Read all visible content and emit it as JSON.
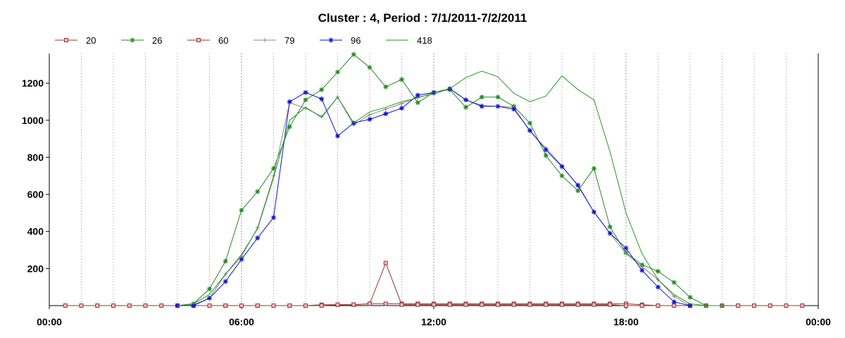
{
  "chart_data": {
    "type": "line",
    "title": "Cluster : 4, Period : 7/1/2011-7/2/2011",
    "xlabel": "",
    "ylabel": "",
    "x_unit": "hour of day",
    "xlim": [
      0,
      24
    ],
    "ylim": [
      0,
      1360
    ],
    "x_ticks": [
      0,
      6,
      12,
      18,
      24
    ],
    "x_tick_labels": [
      "00:00",
      "06:00",
      "12:00",
      "18:00",
      "00:00"
    ],
    "y_ticks": [
      200,
      400,
      600,
      800,
      1000,
      1200
    ],
    "y_tick_labels": [
      "200",
      "400",
      "600",
      "800",
      "1000",
      "1200"
    ],
    "grid": "vertical dotted lines every hour",
    "legend_position": "top-left",
    "series": [
      {
        "name": "20",
        "color": "#993333",
        "marker": "square",
        "x": [
          0.5,
          1,
          1.5,
          2,
          2.5,
          3,
          3.5,
          4,
          4.5,
          5,
          5.5,
          6,
          6.5,
          7,
          7.5,
          8,
          8.5,
          9,
          9.5,
          10,
          10.5,
          11,
          11.5,
          12,
          12.5,
          13,
          13.5,
          14,
          14.5,
          15,
          15.5,
          16,
          16.5,
          17,
          17.5,
          18,
          18.5,
          19,
          19.5,
          20,
          20.5,
          21,
          21.5,
          22,
          22.5,
          23,
          23.5
        ],
        "y": [
          0,
          0,
          0,
          0,
          0,
          0,
          0,
          0,
          0,
          0,
          0,
          0,
          0,
          0,
          0,
          0,
          5,
          5,
          5,
          10,
          10,
          10,
          10,
          10,
          10,
          10,
          10,
          10,
          10,
          10,
          10,
          10,
          10,
          10,
          10,
          10,
          5,
          0,
          0,
          0,
          0,
          0,
          0,
          0,
          0,
          0,
          0
        ]
      },
      {
        "name": "26",
        "color": "#228822",
        "marker": "star",
        "x": [
          4,
          4.5,
          5,
          5.5,
          6,
          6.5,
          7,
          7.5,
          8,
          8.5,
          9,
          9.5,
          10,
          10.5,
          11,
          11.5,
          12,
          12.5,
          13,
          13.5,
          14,
          14.5,
          15,
          15.5,
          16,
          16.5,
          17,
          17.5,
          18,
          18.5,
          19,
          19.5,
          20,
          20.5,
          21
        ],
        "y": [
          0,
          10,
          90,
          240,
          515,
          615,
          740,
          965,
          1110,
          1165,
          1260,
          1355,
          1285,
          1180,
          1220,
          1095,
          1150,
          1165,
          1070,
          1125,
          1125,
          1075,
          985,
          810,
          700,
          620,
          740,
          425,
          285,
          220,
          185,
          125,
          45,
          0,
          0
        ]
      },
      {
        "name": "60",
        "color": "#993333",
        "marker": "square",
        "x": [
          4,
          4.5,
          5,
          5.5,
          6,
          6.5,
          7,
          7.5,
          8,
          8.5,
          9,
          9.5,
          10,
          10.5,
          11,
          11.5,
          12,
          12.5,
          13,
          13.5,
          14,
          14.5,
          15,
          15.5,
          16,
          16.5,
          17,
          17.5,
          18,
          18.5,
          19
        ],
        "y": [
          0,
          0,
          0,
          0,
          0,
          0,
          0,
          0,
          0,
          0,
          5,
          5,
          10,
          230,
          5,
          5,
          5,
          5,
          5,
          5,
          5,
          5,
          5,
          5,
          5,
          5,
          5,
          5,
          0,
          0,
          0
        ]
      },
      {
        "name": "79",
        "color": "#888888",
        "marker": "plus",
        "x": [
          4,
          4.5,
          5,
          5.5,
          6,
          6.5,
          7,
          7.5,
          8,
          8.5,
          9,
          9.5,
          10,
          10.5,
          11,
          11.5,
          12,
          12.5,
          13,
          13.5,
          14,
          14.5,
          15,
          15.5,
          16,
          16.5,
          17,
          17.5,
          18,
          18.5,
          19,
          19.5,
          20,
          20.5,
          21
        ],
        "y": [
          0,
          5,
          40,
          170,
          265,
          420,
          700,
          1095,
          1065,
          1020,
          1125,
          975,
          1030,
          1060,
          1090,
          1125,
          1140,
          1170,
          1110,
          1080,
          1075,
          1070,
          940,
          850,
          755,
          645,
          505,
          390,
          280,
          210,
          140,
          50,
          0,
          0,
          0
        ]
      },
      {
        "name": "96",
        "color": "#1111cc",
        "marker": "star",
        "x": [
          4,
          4.5,
          5,
          5.5,
          6,
          6.5,
          7,
          7.5,
          8,
          8.5,
          9,
          9.5,
          10,
          10.5,
          11,
          11.5,
          12,
          12.5,
          13,
          13.5,
          14,
          14.5,
          15,
          15.5,
          16,
          16.5,
          17,
          17.5,
          18,
          18.5,
          19,
          19.5,
          20
        ],
        "y": [
          0,
          0,
          40,
          130,
          250,
          365,
          475,
          1100,
          1150,
          1115,
          915,
          985,
          1005,
          1035,
          1065,
          1135,
          1150,
          1170,
          1110,
          1075,
          1075,
          1060,
          945,
          840,
          750,
          650,
          505,
          390,
          310,
          190,
          100,
          20,
          0
        ]
      },
      {
        "name": "418",
        "color": "#229922",
        "marker": "none",
        "x": [
          4,
          4.5,
          5,
          5.5,
          6,
          6.5,
          7,
          7.5,
          8,
          8.5,
          9,
          9.5,
          10,
          10.5,
          11,
          11.5,
          12,
          12.5,
          13,
          13.5,
          14,
          14.5,
          15,
          15.5,
          16,
          16.5,
          17,
          17.5,
          18,
          18.5,
          19,
          19.5,
          20,
          20.5,
          21
        ],
        "y": [
          0,
          10,
          60,
          170,
          275,
          415,
          690,
          1000,
          1070,
          1015,
          1125,
          985,
          1045,
          1070,
          1100,
          1120,
          1150,
          1170,
          1230,
          1265,
          1235,
          1145,
          1100,
          1130,
          1240,
          1165,
          1110,
          830,
          500,
          280,
          140,
          60,
          10,
          0,
          0
        ]
      }
    ]
  }
}
